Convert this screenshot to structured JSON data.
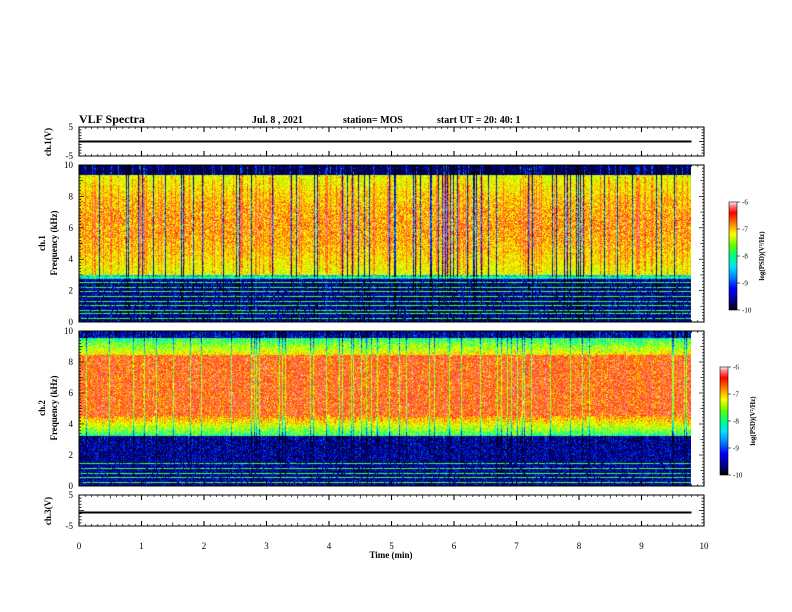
{
  "header": {
    "title": "VLF Spectra",
    "date": "Jul. 8 , 2021",
    "station": "station= MOS",
    "start": "start  UT =   20: 40: 1"
  },
  "chart_data": [
    {
      "type": "line",
      "panel": "ch1-waveform",
      "ylabel": "ch.1(V)",
      "ylim": [
        -5,
        5
      ],
      "yticks": [
        "5",
        "-5"
      ],
      "x_range_min": [
        0,
        9.8
      ],
      "y_level": 0
    },
    {
      "type": "heatmap",
      "panel": "ch1-spectrogram",
      "ylabel": "ch.1\nFrequency (kHz)",
      "ylim": [
        0,
        10
      ],
      "yticks": [
        "0",
        "2",
        "4",
        "6",
        "8",
        "10"
      ],
      "x_range_min": [
        0,
        9.8
      ],
      "band_khz": [
        3,
        9.3
      ],
      "colorbar": {
        "label": "log(PSD)(V²/Hz)",
        "ticks": [
          "-6",
          "-7",
          "-8",
          "-9",
          "-10"
        ],
        "range": [
          -10,
          -6
        ]
      },
      "line_frequencies_khz": [
        0.2,
        0.5,
        0.7,
        1.0,
        1.3,
        1.6,
        1.9,
        2.2,
        2.5,
        2.8
      ]
    },
    {
      "type": "heatmap",
      "panel": "ch2-spectrogram",
      "ylabel": "ch.2\nFrequency (kHz)",
      "ylim": [
        0,
        10
      ],
      "yticks": [
        "0",
        "2",
        "4",
        "6",
        "8",
        "10"
      ],
      "x_range_min": [
        0,
        9.8
      ],
      "band_khz": [
        3.2,
        9.6
      ],
      "peak_khz": [
        4.5,
        7.8
      ],
      "colorbar": {
        "label": "log(PSD)(V²/Hz)",
        "ticks": [
          "-6",
          "-7",
          "-8",
          "-9",
          "-10"
        ],
        "range": [
          -10,
          -6
        ]
      },
      "line_frequencies_khz": [
        0.2,
        0.5,
        0.8,
        1.1,
        1.4
      ]
    },
    {
      "type": "line",
      "panel": "ch3-waveform",
      "ylabel": "ch.3(V)",
      "ylim": [
        -5,
        5
      ],
      "yticks": [
        "5",
        "-5"
      ],
      "x_range_min": [
        0,
        9.8
      ],
      "y_level": 0
    }
  ],
  "xaxis": {
    "label": "Time  (min)",
    "ticks": [
      "0",
      "1",
      "2",
      "3",
      "4",
      "5",
      "6",
      "7",
      "8",
      "9",
      "10"
    ],
    "xlim": [
      0,
      10
    ]
  },
  "colors": {
    "background": "#ffffff",
    "axis": "#000000",
    "colormap": [
      "#000000",
      "#000060",
      "#0000c8",
      "#0060ff",
      "#00c8ff",
      "#00ffc0",
      "#40ff40",
      "#c8ff00",
      "#ffff00",
      "#ffa000",
      "#ff3020",
      "#ff8080",
      "#ffffff"
    ]
  }
}
